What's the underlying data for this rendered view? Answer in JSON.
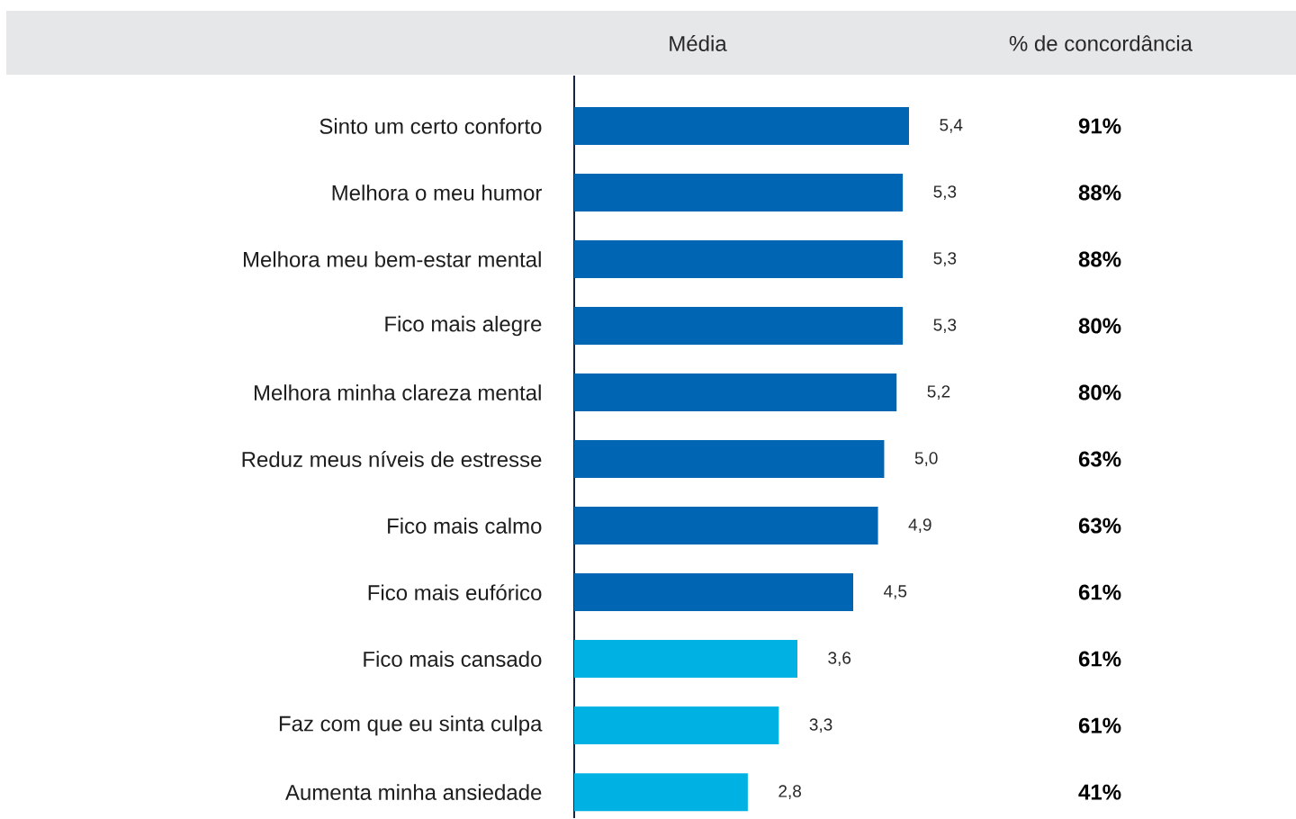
{
  "chart_data": {
    "type": "bar",
    "orientation": "horizontal",
    "categories": [
      "Sinto um certo conforto",
      "Melhora o meu humor",
      "Melhora meu bem-estar mental",
      "Fico mais alegre",
      "Melhora minha clareza mental",
      "Reduz meus níveis de estresse",
      "Fico mais calmo",
      "Fico mais eufórico",
      "Fico mais cansado",
      "Faz com que eu sinta culpa",
      "Aumenta minha ansiedade"
    ],
    "values": [
      5.4,
      5.3,
      5.3,
      5.3,
      5.2,
      5.0,
      4.9,
      4.5,
      3.6,
      3.3,
      2.8
    ],
    "value_labels": [
      "5,4",
      "5,3",
      "5,3",
      "5,3",
      "5,2",
      "5,0",
      "4,9",
      "4,5",
      "3,6",
      "3,3",
      "2,8"
    ],
    "colors": [
      "#0066b3",
      "#0066b3",
      "#0066b3",
      "#0066b3",
      "#0066b3",
      "#0066b3",
      "#0066b3",
      "#0066b3",
      "#00b2e3",
      "#00b2e3",
      "#00b2e3"
    ],
    "annotations": [
      "Média",
      "% de concordância",
      "91%",
      "88%",
      "88%",
      "80%",
      "80%",
      "63%",
      "63%",
      "61%",
      "61%",
      "61%",
      "41%"
    ]
  }
}
